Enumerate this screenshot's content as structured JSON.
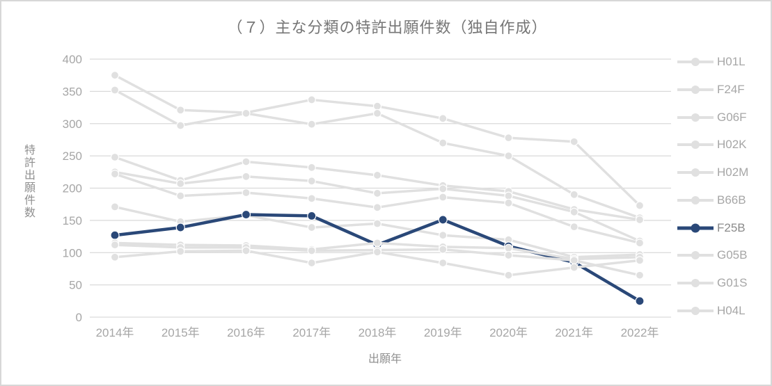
{
  "chart_data": {
    "type": "line",
    "title": "（７）主な分類の特許出願件数（独自作成）",
    "xlabel": "出願年",
    "ylabel": "特許出願件数",
    "ylim": [
      0,
      400
    ],
    "y_ticks": [
      0,
      50,
      100,
      150,
      200,
      250,
      300,
      350,
      400
    ],
    "grid": true,
    "legend_position": "right",
    "categories": [
      "2014年",
      "2015年",
      "2016年",
      "2017年",
      "2018年",
      "2019年",
      "2020年",
      "2021年",
      "2022年"
    ],
    "series": [
      {
        "name": "H01L",
        "emphasis": false,
        "color": "#e0e0e0",
        "values": [
          375,
          321,
          317,
          337,
          327,
          308,
          278,
          272,
          173
        ]
      },
      {
        "name": "F24F",
        "emphasis": false,
        "color": "#e0e0e0",
        "values": [
          352,
          297,
          316,
          299,
          316,
          270,
          250,
          190,
          154
        ]
      },
      {
        "name": "G06F",
        "emphasis": false,
        "color": "#e0e0e0",
        "values": [
          248,
          212,
          241,
          232,
          220,
          204,
          195,
          167,
          151
        ]
      },
      {
        "name": "H02K",
        "emphasis": false,
        "color": "#e0e0e0",
        "values": [
          225,
          207,
          218,
          211,
          192,
          199,
          188,
          163,
          118
        ]
      },
      {
        "name": "H02M",
        "emphasis": false,
        "color": "#e0e0e0",
        "values": [
          222,
          188,
          193,
          184,
          170,
          186,
          177,
          140,
          115
        ]
      },
      {
        "name": "B66B",
        "emphasis": false,
        "color": "#e0e0e0",
        "values": [
          171,
          148,
          158,
          139,
          145,
          127,
          120,
          93,
          97
        ]
      },
      {
        "name": "F25B",
        "emphasis": true,
        "color": "#2a4878",
        "values": [
          127,
          139,
          159,
          157,
          112,
          151,
          110,
          85,
          25
        ]
      },
      {
        "name": "G05B",
        "emphasis": false,
        "color": "#e0e0e0",
        "values": [
          115,
          112,
          111,
          105,
          115,
          109,
          107,
          90,
          93
        ]
      },
      {
        "name": "G01S",
        "emphasis": false,
        "color": "#e0e0e0",
        "values": [
          112,
          108,
          108,
          103,
          104,
          105,
          96,
          88,
          65
        ]
      },
      {
        "name": "H04L",
        "emphasis": false,
        "color": "#e0e0e0",
        "values": [
          93,
          102,
          103,
          84,
          101,
          84,
          65,
          77,
          88
        ]
      }
    ]
  },
  "colors": {
    "accent_navy": "#2a4878",
    "line_gray": "#e0e0e0",
    "grid_gray": "#d9d9d9",
    "tick_text": "#a6a6a6",
    "title_text": "#767676",
    "frame_border": "#d7d7d7",
    "background": "#ffffff"
  }
}
